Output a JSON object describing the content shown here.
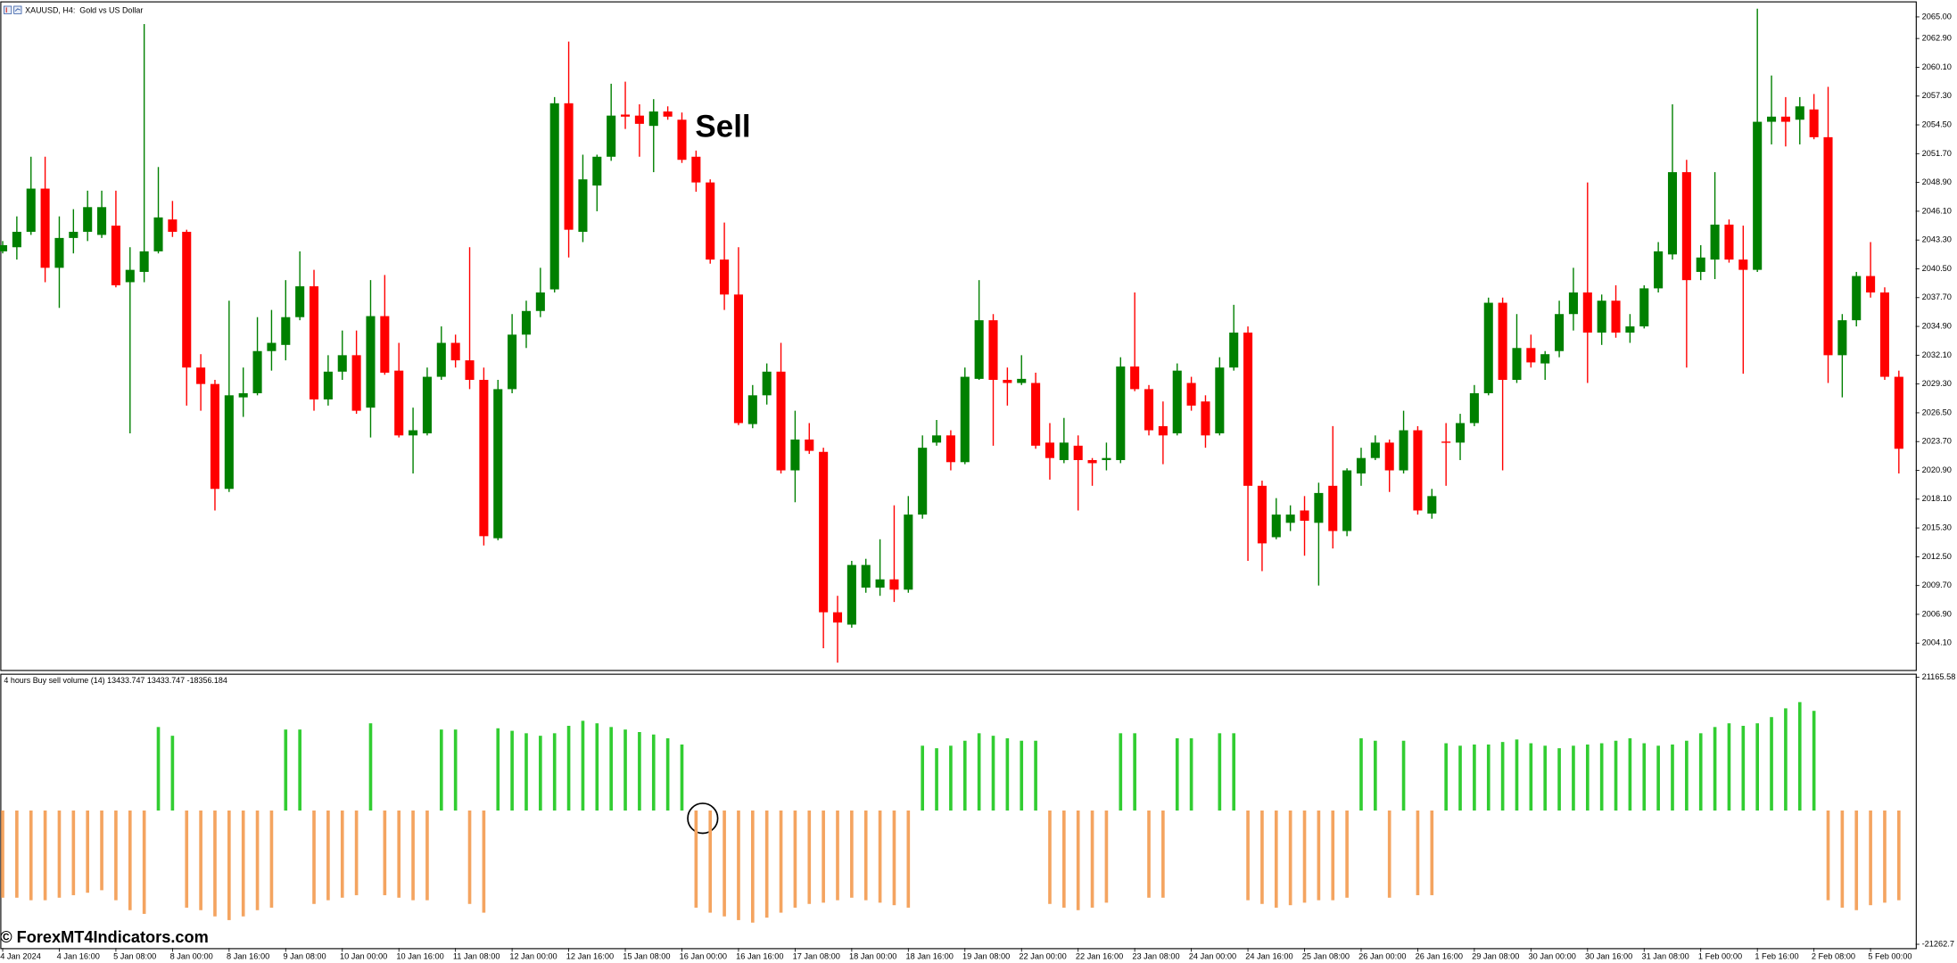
{
  "watermark": "© ForexMT4Indicators.com",
  "chart_data": [
    {
      "type": "candlestick",
      "title": "XAUUSD, H4:  Gold vs US Dollar",
      "annotation": "Sell",
      "up_color": "#008000",
      "down_color": "#ff0000",
      "categories": [
        "4 Jan 2024",
        null,
        null,
        null,
        "4 Jan 16:00",
        null,
        null,
        null,
        "5 Jan 08:00",
        null,
        null,
        null,
        "8 Jan 00:00",
        null,
        null,
        null,
        "8 Jan 16:00",
        null,
        null,
        null,
        "9 Jan 08:00",
        null,
        null,
        null,
        "10 Jan 00:00",
        null,
        null,
        null,
        "10 Jan 16:00",
        null,
        null,
        null,
        "11 Jan 08:00",
        null,
        null,
        null,
        "12 Jan 00:00",
        null,
        null,
        null,
        "12 Jan 16:00",
        null,
        null,
        null,
        "15 Jan 08:00",
        null,
        null,
        null,
        "16 Jan 00:00",
        null,
        null,
        null,
        "16 Jan 16:00",
        null,
        null,
        null,
        "17 Jan 08:00",
        null,
        null,
        null,
        "18 Jan 00:00",
        null,
        null,
        null,
        "18 Jan 16:00",
        null,
        null,
        null,
        "19 Jan 08:00",
        null,
        null,
        null,
        "22 Jan 00:00",
        null,
        null,
        null,
        "22 Jan 16:00",
        null,
        null,
        null,
        "23 Jan 08:00",
        null,
        null,
        null,
        "24 Jan 00:00",
        null,
        null,
        null,
        "24 Jan 16:00",
        null,
        null,
        null,
        "25 Jan 08:00",
        null,
        null,
        null,
        "26 Jan 00:00",
        null,
        null,
        null,
        "26 Jan 16:00",
        null,
        null,
        null,
        "29 Jan 08:00",
        null,
        null,
        null,
        "30 Jan 00:00",
        null,
        null,
        null,
        "30 Jan 16:00",
        null,
        null,
        null,
        "31 Jan 08:00",
        null,
        null,
        null,
        "1 Feb 00:00",
        null,
        null,
        null,
        "1 Feb 16:00",
        null,
        null,
        null,
        "2 Feb 08:00",
        null,
        null,
        null,
        "5 Feb 00:00",
        null,
        null
      ],
      "open": [
        2042.2,
        2042.6,
        2044.1,
        2048.3,
        2040.6,
        2043.5,
        2044.1,
        2043.8,
        2044.7,
        2039.2,
        2040.2,
        2042.2,
        2045.3,
        2044.1,
        2030.9,
        2029.3,
        2019.1,
        2028.0,
        2028.4,
        2032.5,
        2033.1,
        2035.8,
        2038.8,
        2027.8,
        2030.5,
        2032.1,
        2027.0,
        2035.9,
        2030.6,
        2024.3,
        2024.5,
        2030.0,
        2033.3,
        2031.6,
        2029.7,
        2014.3,
        2028.8,
        2034.1,
        2036.4,
        2038.5,
        2056.6,
        2044.1,
        2048.6,
        2051.4,
        2055.5,
        2055.4,
        2054.4,
        2055.8,
        2055.0,
        2051.4,
        2048.9,
        2041.4,
        2038.0,
        2025.4,
        2028.2,
        2030.5,
        2020.9,
        2023.9,
        2022.7,
        2007.1,
        2005.9,
        2009.5,
        2009.5,
        2010.3,
        2009.3,
        2016.6,
        2023.6,
        2024.3,
        2021.7,
        2029.8,
        2035.5,
        2029.7,
        2029.4,
        2029.4,
        2023.6,
        2021.9,
        2023.3,
        2021.9,
        2021.9,
        2021.9,
        2031.0,
        2028.8,
        2025.2,
        2024.5,
        2029.4,
        2027.6,
        2024.5,
        2030.9,
        2034.3,
        2019.4,
        2014.4,
        2015.8,
        2017.0,
        2015.8,
        2019.4,
        2015.0,
        2020.6,
        2022.1,
        2023.6,
        2020.9,
        2024.8,
        2016.7,
        2023.7,
        2023.6,
        2025.5,
        2028.4,
        2037.2,
        2029.7,
        2032.8,
        2031.3,
        2032.5,
        2036.1,
        2038.2,
        2034.3,
        2037.4,
        2034.3,
        2034.9,
        2038.6,
        2041.9,
        2049.9,
        2040.2,
        2041.4,
        2044.8,
        2041.4,
        2040.4,
        2054.8,
        2055.3,
        2055.0,
        2056.0,
        2053.3,
        2032.1,
        2035.5,
        2039.8,
        2038.2,
        2030.0
      ],
      "high": [
        2043.2,
        2045.6,
        2051.4,
        2051.4,
        2045.6,
        2046.3,
        2048.1,
        2048.1,
        2048.1,
        2042.6,
        2064.3,
        2050.4,
        2047.1,
        2044.3,
        2032.2,
        2029.7,
        2037.4,
        2030.9,
        2035.8,
        2036.5,
        2039.4,
        2042.2,
        2040.4,
        2032.1,
        2034.5,
        2034.5,
        2039.4,
        2039.9,
        2033.3,
        2027.0,
        2030.9,
        2034.9,
        2034.1,
        2042.6,
        2030.9,
        2029.7,
        2036.1,
        2037.4,
        2040.6,
        2057.2,
        2062.6,
        2051.6,
        2051.6,
        2058.5,
        2058.7,
        2056.5,
        2057.0,
        2056.3,
        2055.7,
        2052.0,
        2049.2,
        2045.0,
        2042.6,
        2029.2,
        2031.3,
        2033.3,
        2026.7,
        2025.5,
        2023.1,
        2008.7,
        2012.1,
        2012.3,
        2014.2,
        2017.5,
        2018.4,
        2024.3,
        2025.8,
        2024.8,
        2030.9,
        2039.4,
        2036.1,
        2030.9,
        2032.1,
        2030.4,
        2025.5,
        2026.0,
        2024.3,
        2022.1,
        2023.6,
        2031.9,
        2038.2,
        2029.2,
        2027.6,
        2031.3,
        2030.0,
        2028.2,
        2031.9,
        2037.0,
        2034.9,
        2019.9,
        2018.2,
        2017.5,
        2018.4,
        2019.7,
        2025.2,
        2021.1,
        2023.1,
        2024.3,
        2023.9,
        2026.7,
        2025.2,
        2019.1,
        2025.5,
        2026.4,
        2029.2,
        2037.7,
        2037.7,
        2036.1,
        2034.1,
        2032.5,
        2037.4,
        2040.6,
        2048.9,
        2038.0,
        2038.9,
        2036.1,
        2038.9,
        2043.1,
        2056.5,
        2051.1,
        2042.8,
        2049.9,
        2045.3,
        2044.7,
        2065.8,
        2059.3,
        2057.2,
        2057.2,
        2057.5,
        2058.2,
        2036.1,
        2040.2,
        2043.1,
        2038.7,
        2030.6
      ],
      "low": [
        2042.0,
        2041.4,
        2043.8,
        2039.2,
        2036.7,
        2042.0,
        2043.2,
        2043.5,
        2038.7,
        2024.5,
        2039.2,
        2042.0,
        2043.6,
        2027.2,
        2026.7,
        2017.0,
        2018.8,
        2026.1,
        2028.2,
        2030.6,
        2031.6,
        2035.5,
        2026.7,
        2027.2,
        2029.7,
        2026.4,
        2024.1,
        2030.2,
        2024.1,
        2020.6,
        2024.3,
        2029.7,
        2030.9,
        2028.8,
        2013.6,
        2014.1,
        2028.4,
        2032.8,
        2035.8,
        2038.2,
        2041.6,
        2043.1,
        2046.1,
        2051.0,
        2054.1,
        2051.4,
        2049.9,
        2055.0,
        2050.8,
        2048.0,
        2041.0,
        2036.5,
        2025.3,
        2025.0,
        2027.3,
        2020.6,
        2017.8,
        2022.5,
        2003.6,
        2002.2,
        2005.6,
        2009.0,
        2008.7,
        2008.1,
        2009.0,
        2016.2,
        2023.3,
        2020.9,
        2021.5,
        2029.7,
        2023.3,
        2027.2,
        2029.2,
        2023.0,
        2020.0,
        2021.6,
        2017.0,
        2019.4,
        2020.9,
        2021.6,
        2028.6,
        2024.3,
        2021.5,
        2024.3,
        2026.7,
        2023.1,
        2024.3,
        2030.6,
        2012.1,
        2011.1,
        2014.2,
        2015.0,
        2012.6,
        2009.7,
        2013.3,
        2014.5,
        2019.4,
        2021.9,
        2018.8,
        2020.6,
        2016.6,
        2016.2,
        2019.4,
        2021.9,
        2025.2,
        2028.2,
        2020.9,
        2029.4,
        2030.9,
        2029.7,
        2031.9,
        2034.5,
        2029.4,
        2033.1,
        2033.8,
        2033.3,
        2034.7,
        2038.2,
        2041.4,
        2030.9,
        2039.4,
        2039.5,
        2041.1,
        2030.3,
        2040.2,
        2052.6,
        2052.4,
        2052.6,
        2053.1,
        2029.4,
        2028.0,
        2034.9,
        2037.7,
        2029.7,
        2020.6
      ],
      "close": [
        2042.8,
        2044.1,
        2048.3,
        2040.6,
        2043.5,
        2044.1,
        2046.5,
        2046.5,
        2038.9,
        2040.4,
        2042.2,
        2045.5,
        2044.1,
        2030.9,
        2029.3,
        2019.1,
        2028.2,
        2028.4,
        2032.5,
        2033.3,
        2035.8,
        2038.8,
        2027.8,
        2030.5,
        2032.1,
        2026.7,
        2035.9,
        2030.4,
        2024.3,
        2024.8,
        2030.0,
        2033.3,
        2031.6,
        2029.7,
        2014.5,
        2028.8,
        2034.1,
        2036.4,
        2038.2,
        2056.6,
        2044.3,
        2049.2,
        2051.4,
        2055.4,
        2055.3,
        2054.6,
        2055.8,
        2055.3,
        2051.1,
        2048.9,
        2041.4,
        2038.0,
        2025.5,
        2028.2,
        2030.5,
        2020.9,
        2023.9,
        2022.8,
        2007.1,
        2006.1,
        2011.7,
        2011.7,
        2010.3,
        2009.3,
        2016.6,
        2023.1,
        2024.3,
        2021.7,
        2030.0,
        2035.5,
        2029.7,
        2029.4,
        2029.8,
        2023.3,
        2022.1,
        2023.6,
        2021.9,
        2021.6,
        2022.1,
        2031.0,
        2028.8,
        2024.8,
        2024.3,
        2030.6,
        2027.2,
        2024.3,
        2030.9,
        2034.3,
        2019.4,
        2013.8,
        2016.6,
        2016.6,
        2016.0,
        2018.7,
        2015.0,
        2020.9,
        2022.1,
        2023.6,
        2020.9,
        2024.8,
        2017.0,
        2018.4,
        2023.6,
        2025.5,
        2028.4,
        2037.2,
        2029.7,
        2032.8,
        2031.4,
        2032.2,
        2036.1,
        2038.2,
        2034.3,
        2037.4,
        2034.3,
        2034.9,
        2038.6,
        2042.2,
        2049.9,
        2039.4,
        2041.6,
        2044.8,
        2041.4,
        2040.4,
        2054.8,
        2055.3,
        2054.8,
        2056.3,
        2053.3,
        2032.1,
        2035.5,
        2039.8,
        2038.2,
        2030.0,
        2023.0
      ],
      "ylim": [
        2001.5,
        2066.4
      ],
      "yticks": [
        {
          "value": 2065.0,
          "label": "2065.00"
        },
        {
          "value": 2062.9,
          "label": "2062.90"
        },
        {
          "value": 2060.1,
          "label": "2060.10"
        },
        {
          "value": 2057.3,
          "label": "2057.30"
        },
        {
          "value": 2054.5,
          "label": "2054.50"
        },
        {
          "value": 2051.7,
          "label": "2051.70"
        },
        {
          "value": 2048.9,
          "label": "2048.90"
        },
        {
          "value": 2046.1,
          "label": "2046.10"
        },
        {
          "value": 2043.3,
          "label": "2043.30"
        },
        {
          "value": 2040.5,
          "label": "2040.50"
        },
        {
          "value": 2037.7,
          "label": "2037.70"
        },
        {
          "value": 2034.9,
          "label": "2034.90"
        },
        {
          "value": 2032.1,
          "label": "2032.10"
        },
        {
          "value": 2029.3,
          "label": "2029.30"
        },
        {
          "value": 2026.5,
          "label": "2026.50"
        },
        {
          "value": 2023.7,
          "label": "2023.70"
        },
        {
          "value": 2020.9,
          "label": "2020.90"
        },
        {
          "value": 2018.1,
          "label": "2018.10"
        },
        {
          "value": 2015.3,
          "label": "2015.30"
        },
        {
          "value": 2012.5,
          "label": "2012.50"
        },
        {
          "value": 2009.7,
          "label": "2009.70"
        },
        {
          "value": 2006.9,
          "label": "2006.90"
        },
        {
          "value": 2004.1,
          "label": "2004.10"
        }
      ]
    },
    {
      "type": "bar",
      "title": "4 hours Buy sell volume (14) 13433.747 13433.747 -18356.184",
      "series": [
        {
          "color": "#32cd32",
          "values": [
            null,
            null,
            null,
            null,
            null,
            null,
            null,
            null,
            null,
            null,
            null,
            13270,
            11880,
            null,
            null,
            null,
            null,
            null,
            null,
            null,
            12870,
            12870,
            null,
            null,
            null,
            null,
            13860,
            null,
            null,
            null,
            null,
            12870,
            12870,
            null,
            null,
            13070,
            12670,
            12280,
            11880,
            12280,
            13460,
            14260,
            13860,
            13270,
            12870,
            12470,
            12080,
            11480,
            10490,
            null,
            null,
            null,
            null,
            null,
            null,
            null,
            null,
            null,
            null,
            null,
            null,
            null,
            null,
            null,
            null,
            10300,
            9900,
            10300,
            11090,
            12280,
            11880,
            11480,
            11090,
            11090,
            null,
            null,
            null,
            null,
            null,
            12280,
            12280,
            null,
            null,
            11480,
            11480,
            null,
            12280,
            12280,
            null,
            null,
            null,
            null,
            null,
            null,
            null,
            null,
            11480,
            11090,
            null,
            11090,
            null,
            null,
            10690,
            10300,
            10490,
            10490,
            10890,
            11290,
            10690,
            10300,
            9900,
            10300,
            10490,
            10690,
            11090,
            11480,
            10690,
            10300,
            10490,
            11090,
            12280,
            13270,
            13860,
            13460,
            13860,
            14850,
            16240,
            17230,
            15840,
            null,
            null,
            null,
            null,
            null,
            null
          ]
        },
        {
          "color": "#f4a460",
          "values": [
            -13860,
            -13860,
            -14260,
            -14260,
            -13860,
            -13460,
            -13070,
            -12670,
            -14260,
            -15840,
            -16430,
            null,
            null,
            -15440,
            -15840,
            -16830,
            -17420,
            -16830,
            -15840,
            -15440,
            null,
            null,
            -14850,
            -14260,
            -13860,
            -13460,
            null,
            -13460,
            -13860,
            -14260,
            -14260,
            null,
            null,
            -14850,
            -16240,
            null,
            null,
            null,
            null,
            null,
            null,
            null,
            null,
            null,
            null,
            null,
            null,
            null,
            null,
            -15440,
            -16240,
            -16830,
            -17420,
            -17820,
            -17030,
            -16240,
            -15440,
            -14850,
            -14650,
            -14260,
            -13860,
            -14260,
            -14650,
            -15050,
            -15440,
            null,
            null,
            null,
            null,
            null,
            null,
            null,
            null,
            null,
            -14850,
            -15440,
            -15840,
            -15440,
            -14650,
            null,
            null,
            -13860,
            -13860,
            null,
            null,
            null,
            null,
            null,
            -14260,
            -14850,
            -15440,
            -15050,
            -14650,
            -14260,
            -14260,
            -13860,
            null,
            null,
            -13860,
            null,
            -13460,
            -13460,
            null,
            null,
            null,
            null,
            null,
            null,
            null,
            null,
            null,
            null,
            null,
            null,
            null,
            null,
            null,
            null,
            null,
            null,
            null,
            null,
            null,
            null,
            null,
            null,
            null,
            null,
            null,
            -14260,
            -15440,
            -15840,
            -15050,
            -14650,
            -14260
          ]
        }
      ],
      "ylim": [
        -21262.7,
        21165.58
      ],
      "yticks": [
        21165.58,
        -21262.7
      ]
    }
  ]
}
